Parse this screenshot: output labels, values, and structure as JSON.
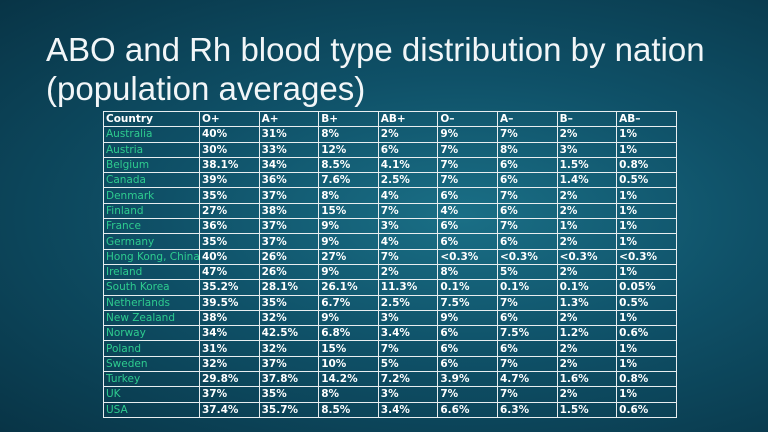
{
  "slide": {
    "title": "ABO and Rh blood type distribution by nation (population averages)"
  },
  "table": {
    "headers": [
      "Country",
      "O+",
      "A+",
      "B+",
      "AB+",
      "O–",
      "A–",
      "B–",
      "AB–"
    ],
    "rows": [
      [
        "Australia",
        "40%",
        "31%",
        "8%",
        "2%",
        "9%",
        "7%",
        "2%",
        "1%"
      ],
      [
        "Austria",
        "30%",
        "33%",
        "12%",
        "6%",
        "7%",
        "8%",
        "3%",
        "1%"
      ],
      [
        "Belgium",
        "38.1%",
        "34%",
        "8.5%",
        "4.1%",
        "7%",
        "6%",
        "1.5%",
        "0.8%"
      ],
      [
        "Canada",
        "39%",
        "36%",
        "7.6%",
        "2.5%",
        "7%",
        "6%",
        "1.4%",
        "0.5%"
      ],
      [
        "Denmark",
        "35%",
        "37%",
        "8%",
        "4%",
        "6%",
        "7%",
        "2%",
        "1%"
      ],
      [
        "Finland",
        "27%",
        "38%",
        "15%",
        "7%",
        "4%",
        "6%",
        "2%",
        "1%"
      ],
      [
        "France",
        "36%",
        "37%",
        "9%",
        "3%",
        "6%",
        "7%",
        "1%",
        "1%"
      ],
      [
        "Germany",
        "35%",
        "37%",
        "9%",
        "4%",
        "6%",
        "6%",
        "2%",
        "1%"
      ],
      [
        "Hong Kong, China",
        "40%",
        "26%",
        "27%",
        "7%",
        "<0.3%",
        "<0.3%",
        "<0.3%",
        "<0.3%"
      ],
      [
        "Ireland",
        "47%",
        "26%",
        "9%",
        "2%",
        "8%",
        "5%",
        "2%",
        "1%"
      ],
      [
        "South Korea",
        "35.2%",
        "28.1%",
        "26.1%",
        "11.3%",
        "0.1%",
        "0.1%",
        "0.1%",
        "0.05%"
      ],
      [
        "Netherlands",
        "39.5%",
        "35%",
        "6.7%",
        "2.5%",
        "7.5%",
        "7%",
        "1.3%",
        "0.5%"
      ],
      [
        "New Zealand",
        "38%",
        "32%",
        "9%",
        "3%",
        "9%",
        "6%",
        "2%",
        "1%"
      ],
      [
        "Norway",
        "34%",
        "42.5%",
        "6.8%",
        "3.4%",
        "6%",
        "7.5%",
        "1.2%",
        "0.6%"
      ],
      [
        "Poland",
        "31%",
        "32%",
        "15%",
        "7%",
        "6%",
        "6%",
        "2%",
        "1%"
      ],
      [
        "Sweden",
        "32%",
        "37%",
        "10%",
        "5%",
        "6%",
        "7%",
        "2%",
        "1%"
      ],
      [
        "Turkey",
        "29.8%",
        "37.8%",
        "14.2%",
        "7.2%",
        "3.9%",
        "4.7%",
        "1.6%",
        "0.8%"
      ],
      [
        "UK",
        "37%",
        "35%",
        "8%",
        "3%",
        "7%",
        "7%",
        "2%",
        "1%"
      ],
      [
        "USA",
        "37.4%",
        "35.7%",
        "8.5%",
        "3.4%",
        "6.6%",
        "6.3%",
        "1.5%",
        "0.6%"
      ]
    ]
  }
}
